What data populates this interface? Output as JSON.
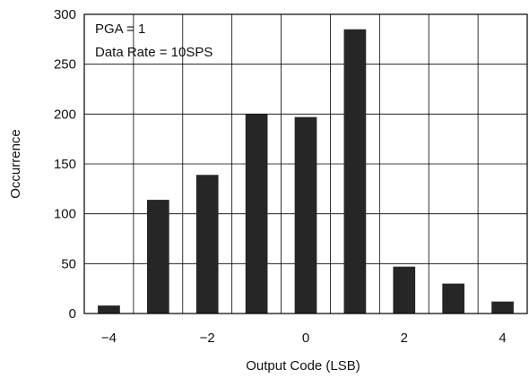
{
  "chart_data": {
    "type": "bar",
    "x": [
      -4,
      -3,
      -2,
      -1,
      0,
      1,
      2,
      3,
      4
    ],
    "values": [
      8,
      114,
      139,
      200,
      197,
      285,
      47,
      30,
      12
    ],
    "xlabel": "Output Code (LSB)",
    "ylabel": "Occurrence",
    "xticks": [
      "−4",
      "−2",
      "0",
      "2",
      "4"
    ],
    "yticks": [
      0,
      50,
      100,
      150,
      200,
      250,
      300
    ],
    "ylim": [
      0,
      300
    ],
    "grid": true,
    "annotations": [
      "PGA = 1",
      "Data Rate = 10SPS"
    ],
    "colors": {
      "bar": "#262626",
      "grid": "#000000"
    }
  }
}
